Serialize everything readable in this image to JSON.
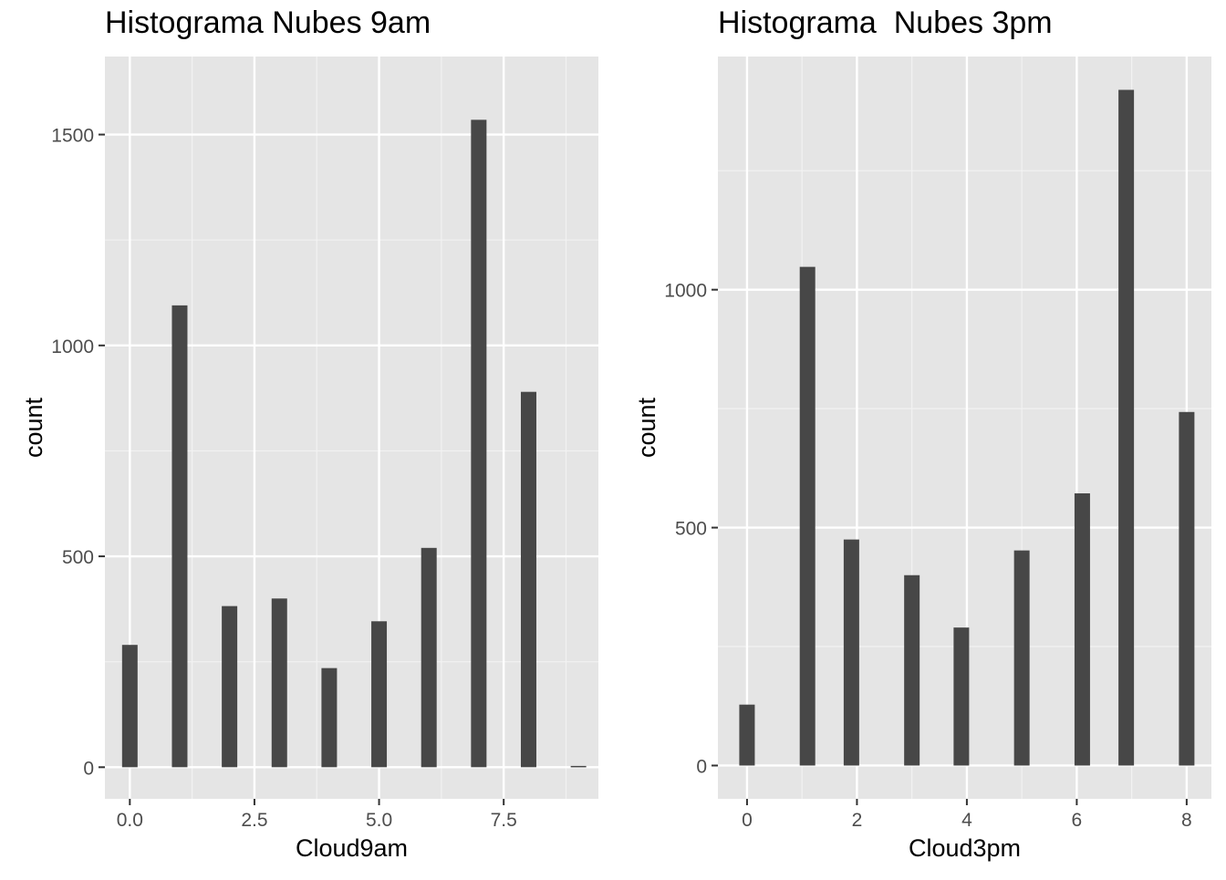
{
  "chart_data": [
    {
      "type": "bar",
      "title": "Histograma Nubes 9am",
      "xlabel": "Cloud9am",
      "ylabel": "count",
      "x": [
        0,
        1,
        2,
        3,
        4,
        5,
        6,
        7,
        8,
        9
      ],
      "values": [
        290,
        1095,
        382,
        400,
        235,
        346,
        520,
        1535,
        890,
        3
      ],
      "xlim": [
        -0.5,
        9.4
      ],
      "ylim": [
        -75,
        1685
      ],
      "xticks": [
        0,
        2.5,
        5,
        7.5
      ],
      "xtick_labels": [
        "0.0",
        "2.5",
        "5.0",
        "7.5"
      ],
      "yticks": [
        0,
        500,
        1000,
        1500
      ],
      "ytick_labels": [
        "0",
        "500",
        "1000",
        "1500"
      ],
      "bar_color": "#474747",
      "panel_background": "#e5e5e5",
      "grid": true
    },
    {
      "type": "bar",
      "title": "Histograma  Nubes 3pm",
      "xlabel": "Cloud3pm",
      "ylabel": "count",
      "x": [
        0,
        1.1,
        1.9,
        3.0,
        3.9,
        5.0,
        6.1,
        6.9,
        8.0
      ],
      "values": [
        128,
        1048,
        475,
        400,
        290,
        452,
        572,
        1420,
        743
      ],
      "xlim": [
        -0.53,
        8.45
      ],
      "ylim": [
        -70,
        1490
      ],
      "xticks": [
        0,
        2,
        4,
        6,
        8
      ],
      "xtick_labels": [
        "0",
        "2",
        "4",
        "6",
        "8"
      ],
      "yticks": [
        0,
        500,
        1000
      ],
      "ytick_labels": [
        "0",
        "500",
        "1000"
      ],
      "bar_color": "#474747",
      "panel_background": "#e5e5e5",
      "grid": true
    }
  ]
}
